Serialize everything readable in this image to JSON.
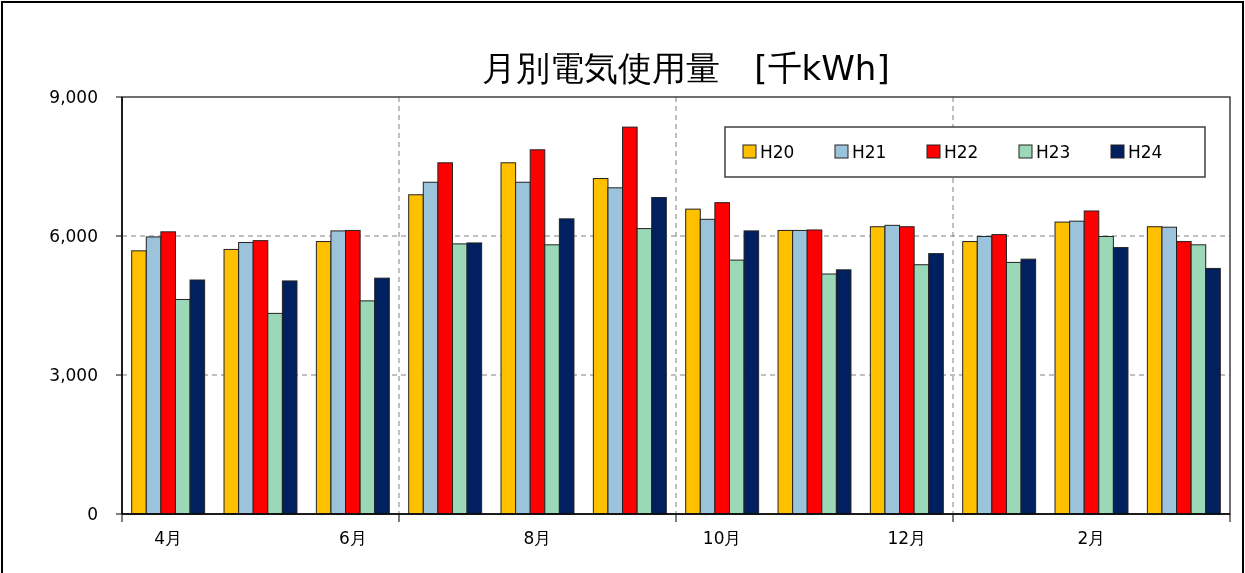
{
  "chart_data": {
    "type": "bar",
    "title": "月別電気使用量　[千kWh]",
    "categories": [
      "4月",
      null,
      "6月",
      null,
      "8月",
      null,
      "10月",
      null,
      "12月",
      null,
      "2月",
      null
    ],
    "series": [
      {
        "name": "H20",
        "color": "#ffc000",
        "values": [
          5680,
          5710,
          5880,
          6890,
          7580,
          7240,
          6580,
          6120,
          6200,
          5880,
          6300,
          6200
        ]
      },
      {
        "name": "H21",
        "color": "#9cc3dc",
        "values": [
          5980,
          5860,
          6110,
          7160,
          7160,
          7040,
          6360,
          6120,
          6230,
          5990,
          6320,
          6190
        ]
      },
      {
        "name": "H22",
        "color": "#ff0000",
        "values": [
          6090,
          5900,
          6120,
          7580,
          7860,
          8350,
          6720,
          6130,
          6200,
          6030,
          6540,
          5880
        ]
      },
      {
        "name": "H23",
        "color": "#9ad8b8",
        "values": [
          4630,
          4330,
          4600,
          5830,
          5810,
          6160,
          5480,
          5180,
          5380,
          5430,
          5990,
          5810
        ]
      },
      {
        "name": "H24",
        "color": "#002060",
        "values": [
          5050,
          5030,
          5090,
          5850,
          6370,
          6830,
          6110,
          5270,
          5620,
          5500,
          5750,
          5300
        ]
      }
    ],
    "ylim": [
      0,
      9000
    ],
    "yticks": [
      0,
      {
        "value": 3000,
        "label": "3,000"
      },
      {
        "value": 6000,
        "label": "6,000"
      },
      {
        "value": 9000,
        "label": "9,000"
      }
    ],
    "grid": true,
    "legend": "top right"
  }
}
